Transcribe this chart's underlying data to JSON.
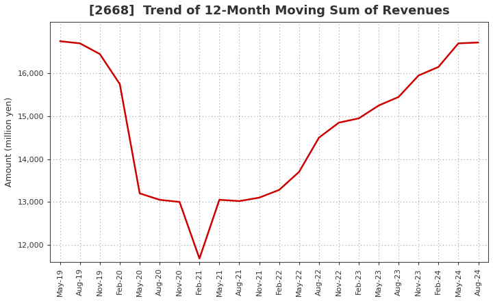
{
  "title": "[2668]  Trend of 12-Month Moving Sum of Revenues",
  "ylabel": "Amount (million yen)",
  "line_color": "#cc0000",
  "line_width": 1.8,
  "background_color": "#ffffff",
  "grid_color": "#999999",
  "ylim": [
    11600,
    17200
  ],
  "yticks": [
    12000,
    13000,
    14000,
    15000,
    16000
  ],
  "values": [
    16750,
    16700,
    16450,
    15750,
    13200,
    13050,
    13000,
    11680,
    13050,
    13020,
    13100,
    13280,
    13700,
    14500,
    14850,
    14950,
    15250,
    15450,
    15950,
    16150,
    16700,
    16720
  ],
  "xtick_labels": [
    "May-19",
    "Aug-19",
    "Nov-19",
    "Feb-20",
    "May-20",
    "Aug-20",
    "Nov-20",
    "Feb-21",
    "May-21",
    "Aug-21",
    "Nov-21",
    "Feb-22",
    "May-22",
    "Aug-22",
    "Nov-22",
    "Feb-23",
    "May-23",
    "Aug-23",
    "Nov-23",
    "Feb-24",
    "May-24",
    "Aug-24"
  ],
  "title_color": "#333333",
  "title_fontsize": 13,
  "ylabel_fontsize": 9,
  "tick_fontsize": 8
}
